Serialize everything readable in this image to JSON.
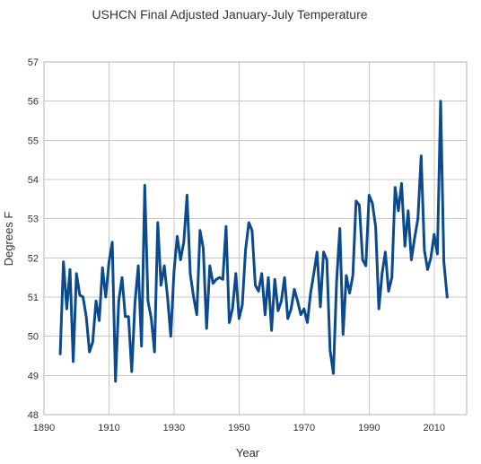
{
  "chart_data": {
    "type": "line",
    "title": "USHCN Final Adjusted January-July Temperature",
    "xlabel": "Year",
    "ylabel": "Degrees F",
    "xlim": [
      1890,
      2020
    ],
    "ylim": [
      48,
      57
    ],
    "x_ticks": [
      1890,
      1910,
      1930,
      1950,
      1970,
      1990,
      2010
    ],
    "y_ticks": [
      48,
      49,
      50,
      51,
      52,
      53,
      54,
      55,
      56,
      57
    ],
    "grid": true,
    "line_color": "#0b4a8c",
    "series": [
      {
        "x": [
          1895,
          1896,
          1897,
          1898,
          1899,
          1900,
          1901,
          1902,
          1903,
          1904,
          1905,
          1906,
          1907,
          1908,
          1909,
          1910,
          1911,
          1912,
          1913,
          1914,
          1915,
          1916,
          1917,
          1918,
          1919,
          1920,
          1921,
          1922,
          1923,
          1924,
          1925,
          1926,
          1927,
          1928,
          1929,
          1930,
          1931,
          1932,
          1933,
          1934,
          1935,
          1936,
          1937,
          1938,
          1939,
          1940,
          1941,
          1942,
          1943,
          1944,
          1945,
          1946,
          1947,
          1948,
          1949,
          1950,
          1951,
          1952,
          1953,
          1954,
          1955,
          1956,
          1957,
          1958,
          1959,
          1960,
          1961,
          1962,
          1963,
          1964,
          1965,
          1966,
          1967,
          1968,
          1969,
          1970,
          1971,
          1972,
          1973,
          1974,
          1975,
          1976,
          1977,
          1978,
          1979,
          1980,
          1981,
          1982,
          1983,
          1984,
          1985,
          1986,
          1987,
          1988,
          1989,
          1990,
          1991,
          1992,
          1993,
          1994,
          1995,
          1996,
          1997,
          1998,
          1999,
          2000,
          2001,
          2002,
          2003,
          2004,
          2005,
          2006,
          2007,
          2008,
          2009,
          2010,
          2011,
          2012,
          2013,
          2014
        ],
        "values": [
          49.55,
          51.9,
          50.7,
          51.7,
          49.35,
          51.6,
          51.05,
          51.0,
          50.5,
          49.6,
          49.85,
          50.9,
          50.4,
          51.75,
          51.0,
          51.9,
          52.4,
          48.85,
          50.9,
          51.5,
          50.5,
          50.5,
          49.1,
          50.85,
          51.8,
          49.75,
          53.85,
          50.9,
          50.45,
          49.6,
          52.9,
          51.3,
          51.8,
          51.0,
          50.0,
          51.65,
          52.55,
          51.95,
          52.4,
          53.6,
          51.6,
          51.0,
          50.55,
          52.7,
          52.25,
          50.2,
          51.8,
          51.35,
          51.45,
          51.5,
          51.45,
          52.8,
          50.35,
          50.7,
          51.6,
          50.45,
          50.8,
          52.2,
          52.9,
          52.7,
          51.3,
          51.15,
          51.6,
          50.55,
          51.5,
          50.15,
          51.45,
          50.65,
          50.9,
          51.5,
          50.45,
          50.7,
          51.2,
          50.9,
          50.55,
          50.7,
          50.35,
          51.1,
          51.6,
          52.15,
          50.75,
          52.15,
          51.95,
          49.65,
          49.05,
          51.4,
          52.75,
          50.05,
          51.55,
          51.1,
          51.55,
          53.45,
          53.35,
          51.95,
          51.8,
          53.6,
          53.4,
          52.8,
          50.7,
          51.6,
          52.15,
          51.15,
          51.5,
          53.8,
          53.2,
          53.9,
          52.3,
          53.2,
          51.95,
          52.5,
          53.0,
          54.6,
          52.2,
          51.7,
          52.0,
          52.6,
          52.1,
          56.0,
          51.9,
          51.0
        ]
      }
    ]
  }
}
